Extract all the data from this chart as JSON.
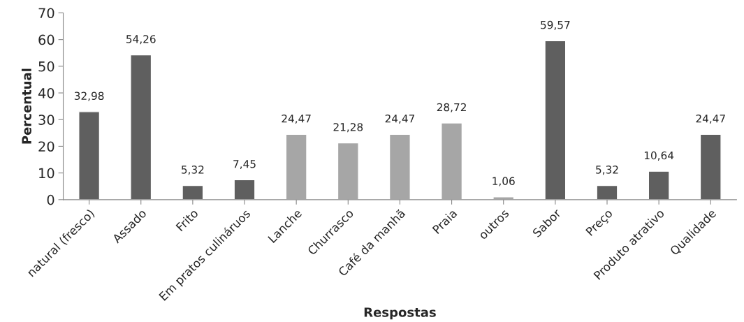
{
  "chart_data": {
    "type": "bar",
    "xlabel": "Respostas",
    "ylabel": "Percentual",
    "categories": [
      "natural (fresco)",
      "Assado",
      "Frito",
      "Em pratos culináruos",
      "Lanche",
      "Churrasco",
      "Café da manhã",
      "Praia",
      "outros",
      "Sabor",
      "Preço",
      "Produto atrativo",
      "Qualidade"
    ],
    "values": [
      32.98,
      54.26,
      5.32,
      7.45,
      24.47,
      21.28,
      24.47,
      28.72,
      1.06,
      59.57,
      5.32,
      10.64,
      24.47
    ],
    "value_labels": [
      "32,98",
      "54,26",
      "5,32",
      "7,45",
      "24,47",
      "21,28",
      "24,47",
      "28,72",
      "1,06",
      "59,57",
      "5,32",
      "10,64",
      "24,47"
    ],
    "colors": [
      "#5f5f5f",
      "#5f5f5f",
      "#5f5f5f",
      "#5f5f5f",
      "#a6a6a6",
      "#a6a6a6",
      "#a6a6a6",
      "#a6a6a6",
      "#a6a6a6",
      "#5f5f5f",
      "#5f5f5f",
      "#5f5f5f",
      "#5f5f5f"
    ],
    "ylim": [
      0,
      70
    ],
    "yticks": [
      0,
      10,
      20,
      30,
      40,
      50,
      60,
      70
    ],
    "grid": false
  }
}
